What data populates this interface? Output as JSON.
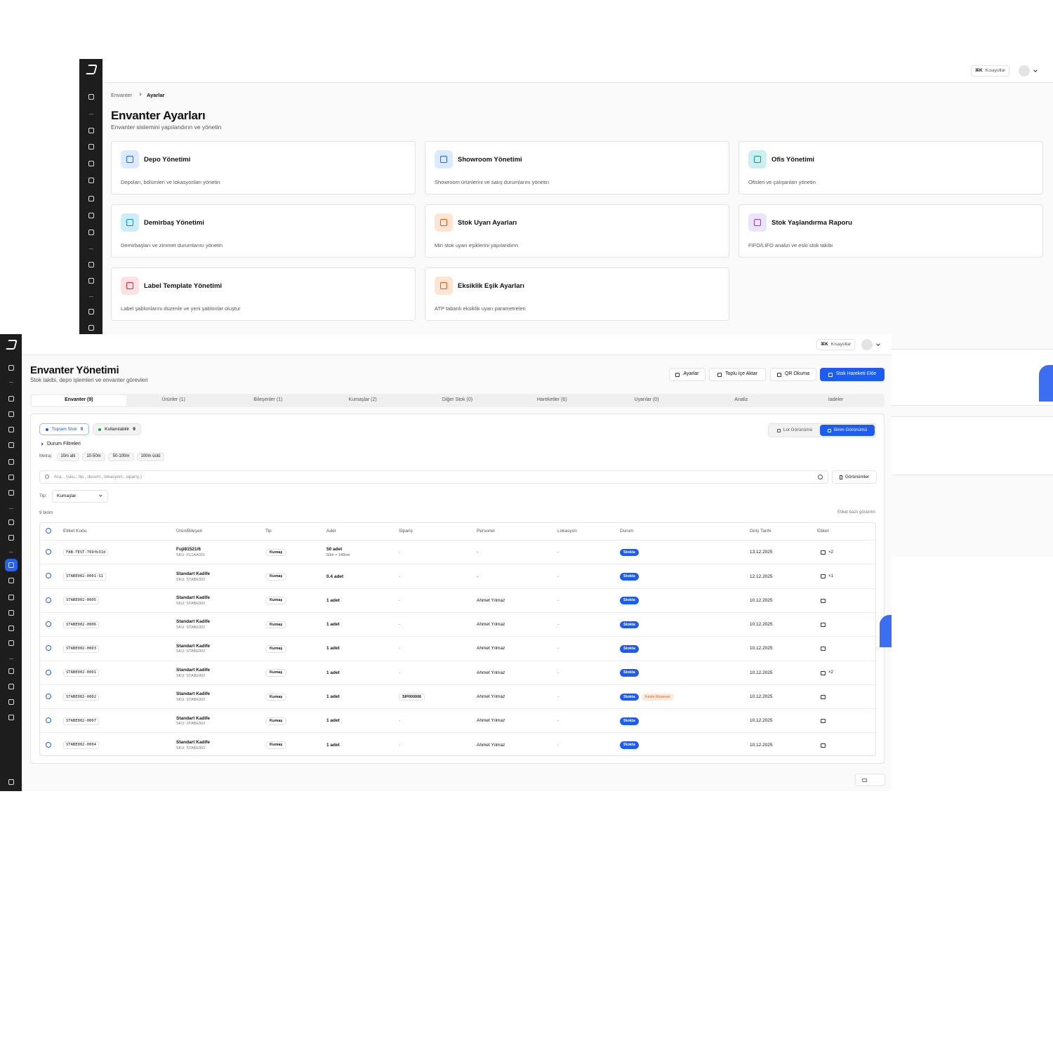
{
  "settings_page": {
    "header": {
      "shortcut_key": "⌘K",
      "shortcut_label": "Kısayollar"
    },
    "breadcrumb": [
      "Envanter",
      "Ayarlar"
    ],
    "title": "Envanter Ayarları",
    "subtitle": "Envanter sistemini yapılandırın ve yönetin",
    "cards": [
      {
        "title": "Depo Yönetimi",
        "description": "Depoları, bölümleri ve lokasyonları yönetin"
      },
      {
        "title": "Showroom Yönetimi",
        "description": "Showroom ürünlerini ve satış durumlarını yönetin"
      },
      {
        "title": "Ofis Yönetimi",
        "description": "Ofisleri ve çalışanları yönetin"
      },
      {
        "title": "Demirbaş Yönetimi",
        "description": "Demirbaşları ve zimmet durumlarını yönetin"
      },
      {
        "title": "Stok Uyarı Ayarları",
        "description": "Min stok uyarı eşiklerini yapılandırın"
      },
      {
        "title": "Stok Yaşlandırma Raporu",
        "description": "FIFO/LIFO analizi ve eski stok takibi"
      },
      {
        "title": "Label Template Yönetimi",
        "description": "Label şablonlarını düzenle ve yeni şablonlar oluştur"
      },
      {
        "title": "Eksiklik Eşik Ayarları",
        "description": "ATP tabanlı eksiklik uyarı parametreleri"
      }
    ]
  },
  "inventory_page": {
    "header": {
      "shortcut_key": "⌘K",
      "shortcut_label": "Kısayollar"
    },
    "title": "Envanter Yönetimi",
    "subtitle": "Stok takibi, depo işlemleri ve envanter görevleri",
    "actions": [
      "Ayarlar",
      "Toplu İçe Aktar",
      "QR Okuma",
      "Stok Hareketi Ekle"
    ],
    "tabs": [
      "Envanter (9)",
      "Ürünler (1)",
      "Bileşenler (1)",
      "Kumaşlar (2)",
      "Diğer Stok (0)",
      "Hareketler (6)",
      "Uyarılar (0)",
      "Analiz",
      "İadeler"
    ],
    "stat_chips": [
      {
        "label": "Toplam Stok",
        "count": 9
      },
      {
        "label": "Kullanılabilir",
        "count": 9
      }
    ],
    "view_modes": [
      "Lot Görünümü",
      "Birim Görünümü"
    ],
    "status_filters_label": "Durum Filtreleri",
    "length_filter": {
      "label": "Metraj:",
      "options": [
        "10m altı",
        "10-50m",
        "50-100m",
        "100m üstü"
      ]
    },
    "search_placeholder": "Ara... (sku:, tip:, durum:, lokasyon:, sipariş:)",
    "views_button": "Görünümler",
    "type_filter": {
      "label": "Tip:",
      "value": "Kumaşlar"
    },
    "unit_count": "9 birim",
    "label_toggle": "Etiket bazlı gösterim",
    "table": {
      "columns": [
        "Etiket Kodu",
        "Ürün/Bileşen",
        "Tip",
        "Adet",
        "Sipariş",
        "Personel",
        "Lokasyon",
        "Durum",
        "Giriş Tarihi",
        "Etiket"
      ],
      "rows": [
        {
          "code": "FAB-TEST-769fb31d",
          "product": "Fuji81521/6",
          "sku": "SKU: FUJAA001",
          "type": "Kumaş",
          "qty": "50 adet",
          "qty_detail": "50m × 140cm",
          "order": "-",
          "staff": "-",
          "location": "-",
          "status": "Stokta",
          "date": "13.12.2025",
          "label_count": "×2"
        },
        {
          "code": "STABE002-0001-S1",
          "product": "Standart Kadife",
          "sku": "SKU: STABE002",
          "type": "Kumaş",
          "qty": "0.4 adet",
          "order": "-",
          "staff": "-",
          "location": "-",
          "status": "Stokta",
          "date": "12.12.2025",
          "label_count": "×1"
        },
        {
          "code": "STABE002-0005",
          "product": "Standart Kadife",
          "sku": "SKU: STABE002",
          "type": "Kumaş",
          "qty": "1 adet",
          "order": "-",
          "staff": "Ahmet Yılmaz",
          "location": "-",
          "status": "Stokta",
          "date": "10.12.2025"
        },
        {
          "code": "STABE002-0006",
          "product": "Standart Kadife",
          "sku": "SKU: STABE002",
          "type": "Kumaş",
          "qty": "1 adet",
          "order": "-",
          "staff": "Ahmet Yılmaz",
          "location": "-",
          "status": "Stokta",
          "date": "10.12.2025"
        },
        {
          "code": "STABE002-0003",
          "product": "Standart Kadife",
          "sku": "SKU: STABE002",
          "type": "Kumaş",
          "qty": "1 adet",
          "order": "-",
          "staff": "Ahmet Yılmaz",
          "location": "-",
          "status": "Stokta",
          "date": "10.12.2025"
        },
        {
          "code": "STABE002-0001",
          "product": "Standart Kadife",
          "sku": "SKU: STABE002",
          "type": "Kumaş",
          "qty": "1 adet",
          "order": "-",
          "staff": "Ahmet Yılmaz",
          "location": "-",
          "status": "Stokta",
          "date": "10.12.2025",
          "label_count": "×2"
        },
        {
          "code": "STABE002-0002",
          "product": "Standart Kadife",
          "sku": "SKU: STABE002",
          "type": "Kumaş",
          "qty": "1 adet",
          "order": "SIP000006",
          "staff": "Ahmet Yılmaz",
          "location": "-",
          "status": "Stokta",
          "status_extra": "Kesin Rezerve",
          "date": "10.12.2025"
        },
        {
          "code": "STABE002-0007",
          "product": "Standart Kadife",
          "sku": "SKU: STABE002",
          "type": "Kumaş",
          "qty": "1 adet",
          "order": "-",
          "staff": "Ahmet Yılmaz",
          "location": "-",
          "status": "Stokta",
          "date": "10.12.2025"
        },
        {
          "code": "STABE002-0004",
          "product": "Standart Kadife",
          "sku": "SKU: STABE002",
          "type": "Kumaş",
          "qty": "1 adet",
          "order": "-",
          "staff": "Ahmet Yılmaz",
          "location": "-",
          "status": "Stokta",
          "date": "10.12.2025"
        }
      ]
    }
  }
}
